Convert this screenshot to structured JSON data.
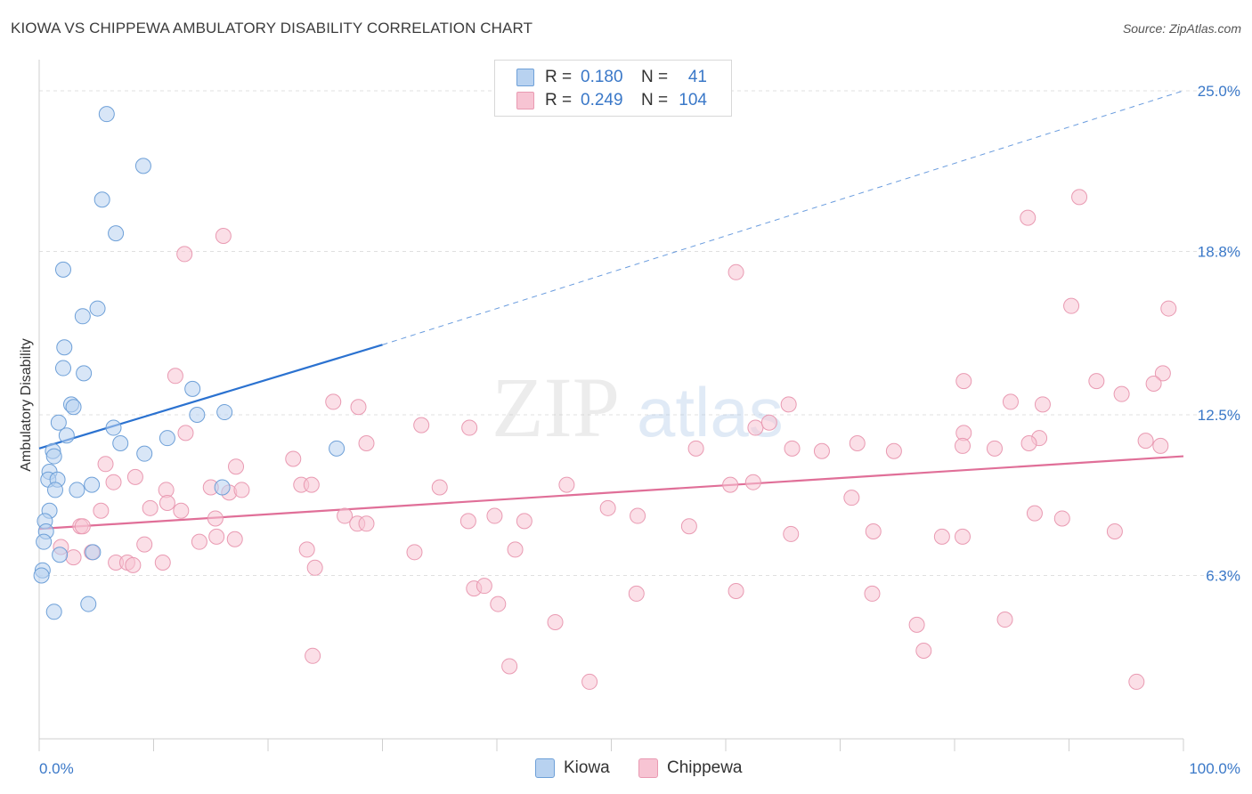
{
  "title": "KIOWA VS CHIPPEWA AMBULATORY DISABILITY CORRELATION CHART",
  "source": "Source: ZipAtlas.com",
  "watermark": {
    "zip": "ZIP",
    "atlas": "atlas"
  },
  "colors": {
    "kiowa_fill": "#b8d2f0",
    "kiowa_stroke": "#6ea0d8",
    "kiowa_line": "#2b72d0",
    "chippewa_fill": "#f7c4d3",
    "chippewa_stroke": "#e99ab2",
    "chippewa_line": "#e06f98",
    "axis_label": "#3a78c8",
    "grid": "#e0e0e0"
  },
  "legend": {
    "rows": [
      {
        "r_label": "R =",
        "r_value": "0.180",
        "n_label": "N =",
        "n_value": "41"
      },
      {
        "r_label": "R =",
        "r_value": "0.249",
        "n_label": "N =",
        "n_value": "104"
      }
    ]
  },
  "bottom_legend": {
    "kiowa": "Kiowa",
    "chippewa": "Chippewa"
  },
  "chart_data": {
    "type": "scatter",
    "title": "KIOWA VS CHIPPEWA AMBULATORY DISABILITY CORRELATION CHART",
    "xlabel": "",
    "ylabel": "Ambulatory Disability",
    "xlim": [
      0,
      100
    ],
    "ylim": [
      0,
      26.2
    ],
    "x_tick_labels": [
      "0.0%",
      "100.0%"
    ],
    "y_ticks": [
      6.3,
      12.5,
      18.8,
      25.0
    ],
    "y_tick_labels": [
      "6.3%",
      "12.5%",
      "18.8%",
      "25.0%"
    ],
    "series": [
      {
        "name": "Kiowa",
        "R": 0.18,
        "N": 41,
        "trend": {
          "x0": 0,
          "y0": 11.2,
          "x1": 30,
          "y1": 15.2,
          "dash_to": 100,
          "dash_y1": 25.0
        },
        "points": [
          [
            5.9,
            24.1
          ],
          [
            9.1,
            22.1
          ],
          [
            5.5,
            20.8
          ],
          [
            6.7,
            19.5
          ],
          [
            2.1,
            18.1
          ],
          [
            5.1,
            16.6
          ],
          [
            3.8,
            16.3
          ],
          [
            2.2,
            15.1
          ],
          [
            2.1,
            14.3
          ],
          [
            3.9,
            14.1
          ],
          [
            13.4,
            13.5
          ],
          [
            2.8,
            12.9
          ],
          [
            3.0,
            12.8
          ],
          [
            16.2,
            12.6
          ],
          [
            13.8,
            12.5
          ],
          [
            1.7,
            12.2
          ],
          [
            6.5,
            12.0
          ],
          [
            2.4,
            11.7
          ],
          [
            11.2,
            11.6
          ],
          [
            7.1,
            11.4
          ],
          [
            1.2,
            11.1
          ],
          [
            9.2,
            11.0
          ],
          [
            26.0,
            11.2
          ],
          [
            1.3,
            10.9
          ],
          [
            0.9,
            10.3
          ],
          [
            0.8,
            10.0
          ],
          [
            1.6,
            10.0
          ],
          [
            1.4,
            9.6
          ],
          [
            3.3,
            9.6
          ],
          [
            4.6,
            9.8
          ],
          [
            16.0,
            9.7
          ],
          [
            0.9,
            8.8
          ],
          [
            0.5,
            8.4
          ],
          [
            0.6,
            8.0
          ],
          [
            0.4,
            7.6
          ],
          [
            1.8,
            7.1
          ],
          [
            4.7,
            7.2
          ],
          [
            1.3,
            4.9
          ],
          [
            4.3,
            5.2
          ],
          [
            0.3,
            6.5
          ],
          [
            0.2,
            6.3
          ]
        ]
      },
      {
        "name": "Chippewa",
        "R": 0.249,
        "N": 104,
        "trend": {
          "x0": 0,
          "y0": 8.1,
          "x1": 100,
          "y1": 10.9
        },
        "points": [
          [
            16.1,
            19.4
          ],
          [
            12.7,
            18.7
          ],
          [
            90.9,
            20.9
          ],
          [
            86.4,
            20.1
          ],
          [
            60.9,
            18.0
          ],
          [
            90.2,
            16.7
          ],
          [
            98.7,
            16.6
          ],
          [
            11.9,
            14.0
          ],
          [
            62.6,
            12.0
          ],
          [
            98.2,
            14.1
          ],
          [
            92.4,
            13.8
          ],
          [
            97.4,
            13.7
          ],
          [
            87.7,
            12.9
          ],
          [
            94.6,
            13.3
          ],
          [
            80.8,
            13.8
          ],
          [
            84.9,
            13.0
          ],
          [
            65.5,
            12.9
          ],
          [
            25.7,
            13.0
          ],
          [
            27.9,
            12.8
          ],
          [
            12.8,
            11.8
          ],
          [
            80.8,
            11.8
          ],
          [
            28.6,
            11.4
          ],
          [
            33.4,
            12.1
          ],
          [
            37.6,
            12.0
          ],
          [
            63.8,
            12.2
          ],
          [
            87.4,
            11.6
          ],
          [
            57.4,
            11.2
          ],
          [
            65.8,
            11.2
          ],
          [
            68.4,
            11.1
          ],
          [
            71.5,
            11.4
          ],
          [
            74.7,
            11.1
          ],
          [
            80.7,
            11.3
          ],
          [
            83.5,
            11.2
          ],
          [
            86.5,
            11.4
          ],
          [
            96.7,
            11.5
          ],
          [
            98.0,
            11.3
          ],
          [
            17.2,
            10.5
          ],
          [
            22.2,
            10.8
          ],
          [
            5.8,
            10.6
          ],
          [
            6.5,
            9.9
          ],
          [
            8.4,
            10.1
          ],
          [
            11.1,
            9.6
          ],
          [
            15.0,
            9.7
          ],
          [
            16.6,
            9.5
          ],
          [
            17.7,
            9.6
          ],
          [
            22.9,
            9.8
          ],
          [
            23.8,
            9.8
          ],
          [
            35.0,
            9.7
          ],
          [
            46.1,
            9.8
          ],
          [
            60.4,
            9.8
          ],
          [
            62.4,
            9.9
          ],
          [
            71.0,
            9.3
          ],
          [
            9.7,
            8.9
          ],
          [
            11.2,
            9.1
          ],
          [
            12.4,
            8.8
          ],
          [
            15.4,
            8.5
          ],
          [
            5.4,
            8.8
          ],
          [
            3.6,
            8.2
          ],
          [
            3.8,
            8.2
          ],
          [
            26.7,
            8.6
          ],
          [
            27.8,
            8.3
          ],
          [
            28.6,
            8.3
          ],
          [
            37.5,
            8.4
          ],
          [
            39.8,
            8.6
          ],
          [
            42.4,
            8.4
          ],
          [
            49.7,
            8.9
          ],
          [
            52.3,
            8.6
          ],
          [
            56.8,
            8.2
          ],
          [
            65.7,
            7.9
          ],
          [
            72.9,
            8.0
          ],
          [
            78.9,
            7.8
          ],
          [
            80.7,
            7.8
          ],
          [
            87.0,
            8.7
          ],
          [
            89.4,
            8.5
          ],
          [
            94.0,
            8.0
          ],
          [
            9.2,
            7.5
          ],
          [
            14.0,
            7.6
          ],
          [
            15.5,
            7.8
          ],
          [
            17.1,
            7.7
          ],
          [
            23.4,
            7.3
          ],
          [
            32.8,
            7.2
          ],
          [
            41.6,
            7.3
          ],
          [
            1.9,
            7.4
          ],
          [
            4.6,
            7.2
          ],
          [
            6.7,
            6.8
          ],
          [
            7.7,
            6.8
          ],
          [
            8.2,
            6.7
          ],
          [
            10.8,
            6.8
          ],
          [
            3.0,
            7.0
          ],
          [
            24.1,
            6.6
          ],
          [
            38.0,
            5.8
          ],
          [
            38.9,
            5.9
          ],
          [
            40.1,
            5.2
          ],
          [
            52.2,
            5.6
          ],
          [
            45.1,
            4.5
          ],
          [
            60.9,
            5.7
          ],
          [
            72.8,
            5.6
          ],
          [
            76.7,
            4.4
          ],
          [
            84.4,
            4.6
          ],
          [
            23.9,
            3.2
          ],
          [
            41.1,
            2.8
          ],
          [
            48.1,
            2.2
          ],
          [
            77.3,
            3.4
          ],
          [
            95.9,
            2.2
          ]
        ]
      }
    ]
  }
}
